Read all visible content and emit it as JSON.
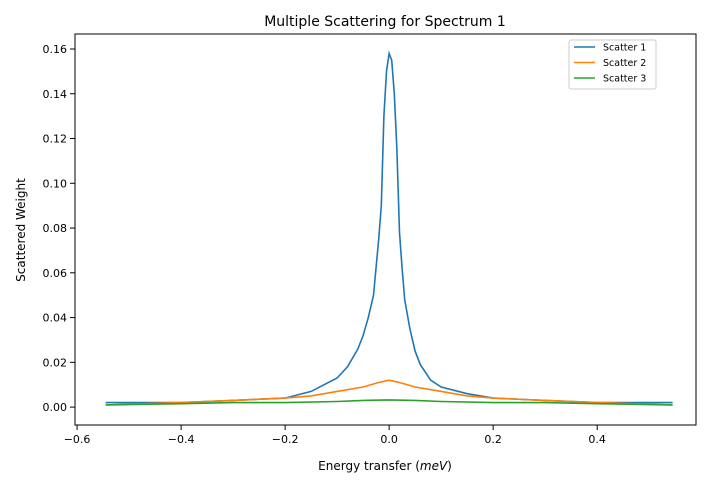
{
  "chart_data": {
    "type": "line",
    "title": "Multiple Scattering for Spectrum 1",
    "xlabel": "Energy transfer (meV)",
    "ylabel": "Scattered Weight",
    "xlim": [
      -0.604,
      0.59
    ],
    "ylim": [
      -0.008,
      0.1667
    ],
    "xticks": [
      -0.6,
      -0.4,
      -0.2,
      0.0,
      0.2,
      0.4
    ],
    "xtick_labels": [
      "−0.6",
      "−0.4",
      "−0.2",
      "0.0",
      "0.2",
      "0.4"
    ],
    "yticks": [
      0.0,
      0.02,
      0.04,
      0.06,
      0.08,
      0.1,
      0.12,
      0.14,
      0.16
    ],
    "ytick_labels": [
      "0.00",
      "0.02",
      "0.04",
      "0.06",
      "0.08",
      "0.10",
      "0.12",
      "0.14",
      "0.16"
    ],
    "grid": false,
    "legend": "top-right",
    "series": [
      {
        "name": "Scatter 1",
        "color": "#1f77b4",
        "x": [
          -0.545,
          -0.4,
          -0.3,
          -0.2,
          -0.15,
          -0.1,
          -0.08,
          -0.06,
          -0.05,
          -0.04,
          -0.03,
          -0.02,
          -0.015,
          -0.01,
          -0.005,
          0,
          0.005,
          0.01,
          0.015,
          0.02,
          0.025,
          0.03,
          0.04,
          0.05,
          0.06,
          0.08,
          0.1,
          0.15,
          0.2,
          0.3,
          0.4,
          0.545
        ],
        "y": [
          0.002,
          0.002,
          0.003,
          0.004,
          0.007,
          0.013,
          0.018,
          0.026,
          0.032,
          0.04,
          0.05,
          0.075,
          0.09,
          0.13,
          0.15,
          0.158,
          0.155,
          0.14,
          0.115,
          0.078,
          0.062,
          0.048,
          0.035,
          0.025,
          0.019,
          0.012,
          0.009,
          0.006,
          0.004,
          0.003,
          0.002,
          0.002
        ]
      },
      {
        "name": "Scatter 2",
        "color": "#ff7f0e",
        "x": [
          -0.545,
          -0.4,
          -0.3,
          -0.2,
          -0.15,
          -0.1,
          -0.05,
          -0.02,
          0,
          0.02,
          0.05,
          0.1,
          0.15,
          0.2,
          0.3,
          0.4,
          0.545
        ],
        "y": [
          0.001,
          0.002,
          0.003,
          0.004,
          0.005,
          0.007,
          0.009,
          0.011,
          0.012,
          0.011,
          0.009,
          0.007,
          0.005,
          0.004,
          0.003,
          0.002,
          0.001
        ]
      },
      {
        "name": "Scatter 3",
        "color": "#2ca02c",
        "x": [
          -0.545,
          -0.4,
          -0.3,
          -0.2,
          -0.1,
          -0.05,
          0,
          0.05,
          0.1,
          0.2,
          0.3,
          0.4,
          0.545
        ],
        "y": [
          0.001,
          0.0015,
          0.002,
          0.002,
          0.0025,
          0.003,
          0.0032,
          0.003,
          0.0025,
          0.002,
          0.002,
          0.0015,
          0.001
        ]
      }
    ]
  }
}
